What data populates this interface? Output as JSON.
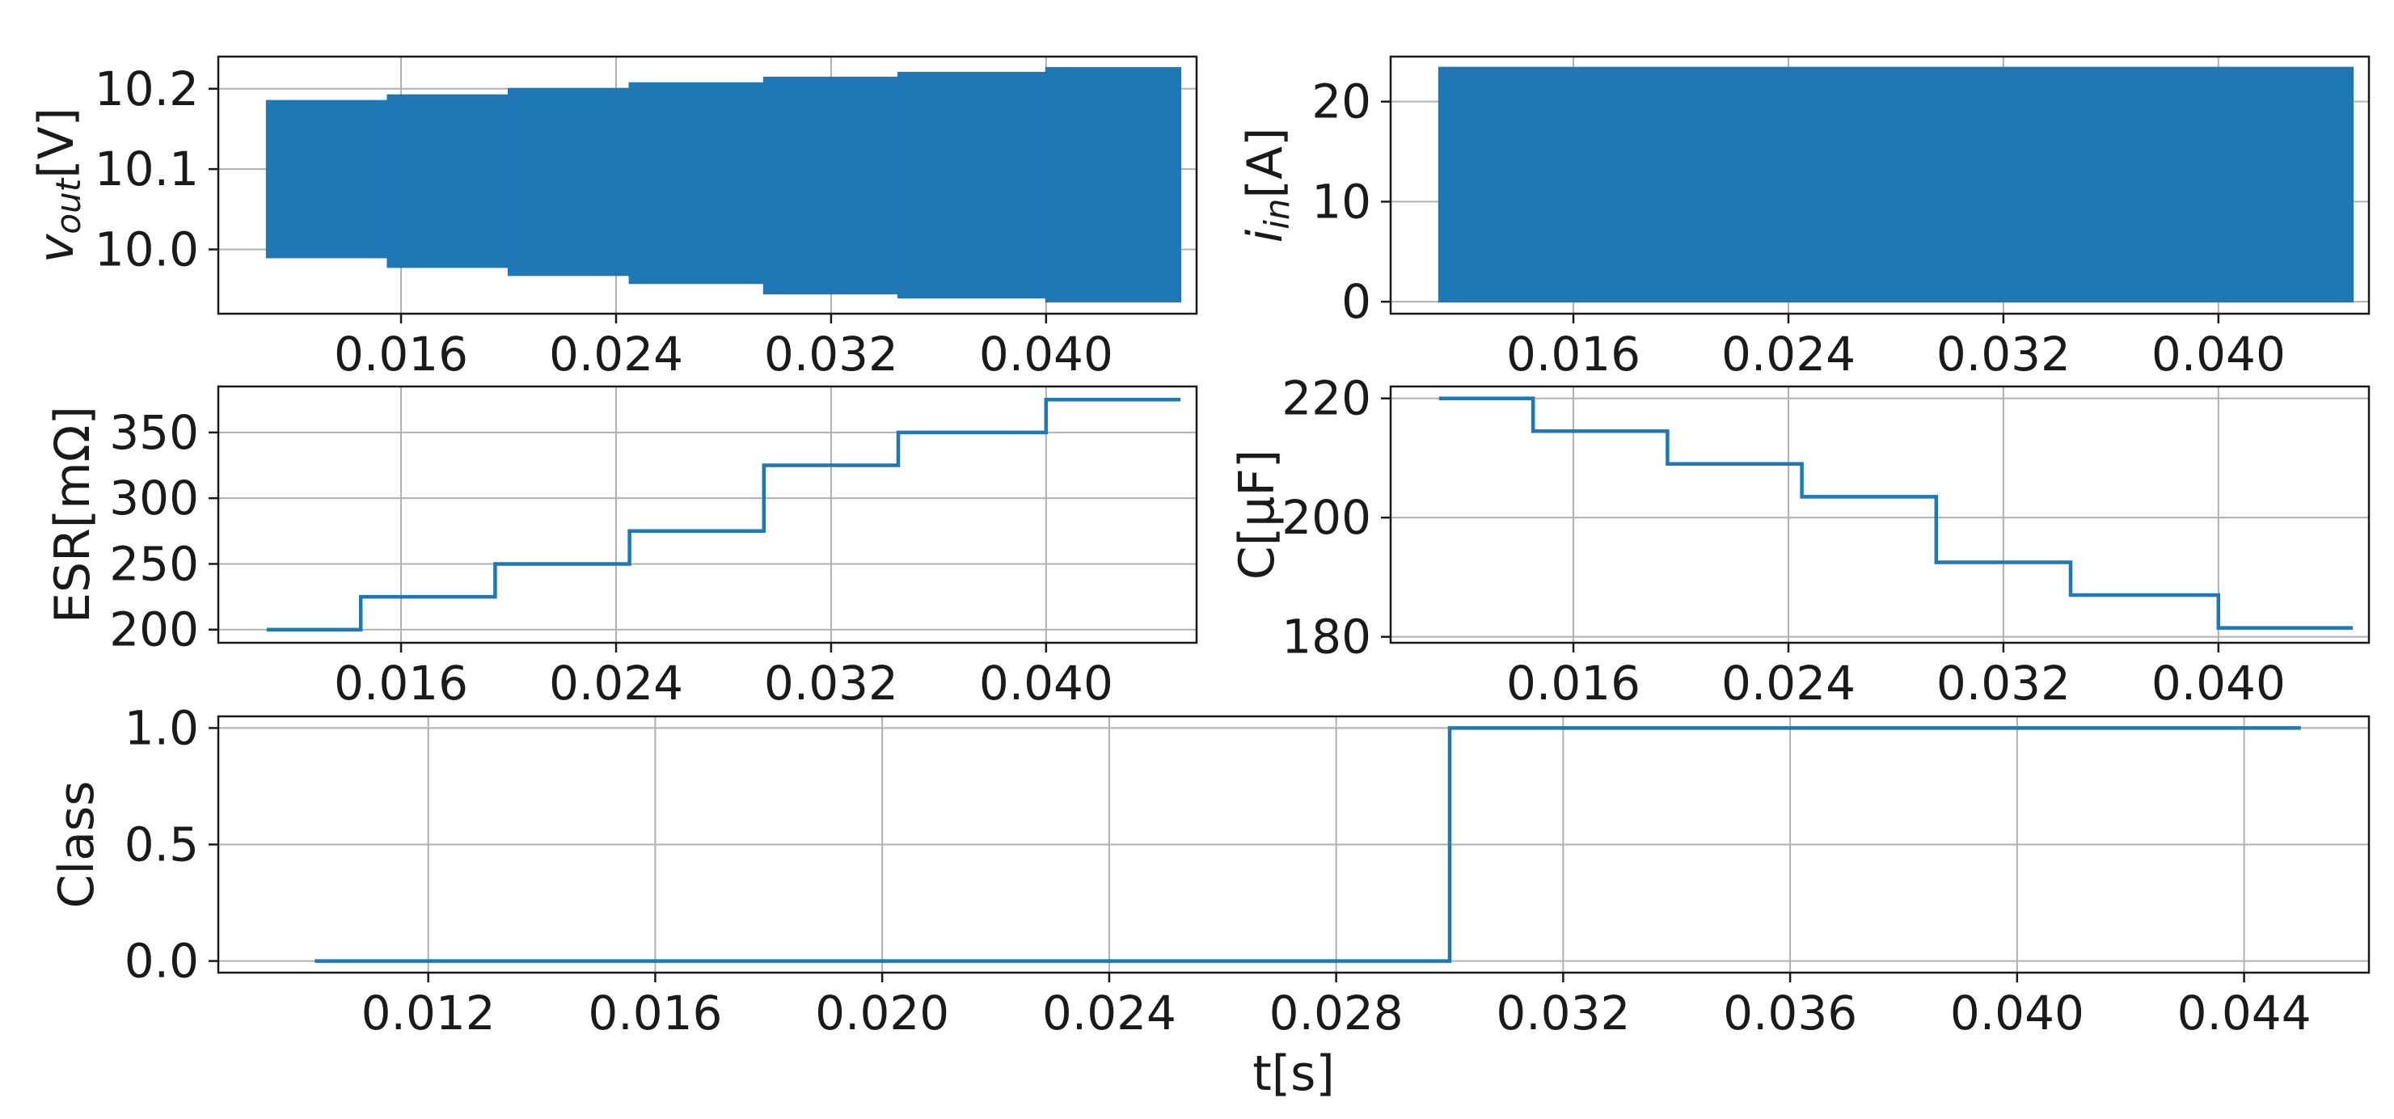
{
  "chart_data": [
    {
      "id": "vout",
      "type": "area",
      "ylabel_main": "v",
      "ylabel_sub": "out",
      "ylabel_unit": "[V]",
      "xlim": [
        0.0092,
        0.0456
      ],
      "ylim": [
        9.92,
        10.24
      ],
      "xticks": [
        0.016,
        0.024,
        0.032,
        0.04
      ],
      "xtick_labels": [
        "0.016",
        "0.024",
        "0.032",
        "0.040"
      ],
      "yticks": [
        10.0,
        10.1,
        10.2
      ],
      "ytick_labels": [
        "10.0",
        "10.1",
        "10.2"
      ],
      "grid": true,
      "color": "#1f77b4",
      "segments": [
        {
          "x0": 0.011,
          "x1": 0.0155,
          "ymin": 9.99,
          "ymax": 10.185
        },
        {
          "x0": 0.0155,
          "x1": 0.02,
          "ymin": 9.978,
          "ymax": 10.192
        },
        {
          "x0": 0.02,
          "x1": 0.0245,
          "ymin": 9.968,
          "ymax": 10.2
        },
        {
          "x0": 0.0245,
          "x1": 0.0295,
          "ymin": 9.958,
          "ymax": 10.207
        },
        {
          "x0": 0.0295,
          "x1": 0.0345,
          "ymin": 9.945,
          "ymax": 10.214
        },
        {
          "x0": 0.0345,
          "x1": 0.04,
          "ymin": 9.94,
          "ymax": 10.22
        },
        {
          "x0": 0.04,
          "x1": 0.045,
          "ymin": 9.935,
          "ymax": 10.226
        }
      ]
    },
    {
      "id": "iin",
      "type": "area",
      "ylabel_main": "i",
      "ylabel_sub": "in",
      "ylabel_unit": "[A]",
      "xlim": [
        0.0092,
        0.0456
      ],
      "ylim": [
        -1.2,
        24.5
      ],
      "xticks": [
        0.016,
        0.024,
        0.032,
        0.04
      ],
      "xtick_labels": [
        "0.016",
        "0.024",
        "0.032",
        "0.040"
      ],
      "yticks": [
        0,
        10,
        20
      ],
      "ytick_labels": [
        "0",
        "10",
        "20"
      ],
      "grid": true,
      "color": "#1f77b4",
      "segments": [
        {
          "x0": 0.011,
          "x1": 0.045,
          "ymin": 0.0,
          "ymax": 23.4
        }
      ]
    },
    {
      "id": "esr",
      "type": "line",
      "ylabel_main": "ESR[mΩ]",
      "xlim": [
        0.0092,
        0.0456
      ],
      "ylim": [
        190,
        385
      ],
      "xticks": [
        0.016,
        0.024,
        0.032,
        0.04
      ],
      "xtick_labels": [
        "0.016",
        "0.024",
        "0.032",
        "0.040"
      ],
      "yticks": [
        200,
        250,
        300,
        350
      ],
      "ytick_labels": [
        "200",
        "250",
        "300",
        "350"
      ],
      "grid": true,
      "color": "#1f77b4",
      "x": [
        0.011,
        0.0145,
        0.0145,
        0.0195,
        0.0195,
        0.0245,
        0.0245,
        0.0295,
        0.0295,
        0.0345,
        0.0345,
        0.04,
        0.04,
        0.045
      ],
      "y": [
        200,
        200,
        225,
        225,
        250,
        250,
        275,
        275,
        325,
        325,
        350,
        350,
        375,
        375
      ]
    },
    {
      "id": "cap",
      "type": "line",
      "ylabel_main": "C[μF]",
      "xlim": [
        0.0092,
        0.0456
      ],
      "ylim": [
        179,
        222
      ],
      "xticks": [
        0.016,
        0.024,
        0.032,
        0.04
      ],
      "xtick_labels": [
        "0.016",
        "0.024",
        "0.032",
        "0.040"
      ],
      "yticks": [
        180,
        200,
        220
      ],
      "ytick_labels": [
        "180",
        "200",
        "220"
      ],
      "grid": true,
      "color": "#1f77b4",
      "x": [
        0.011,
        0.0145,
        0.0145,
        0.0195,
        0.0195,
        0.0245,
        0.0245,
        0.0295,
        0.0295,
        0.0345,
        0.0345,
        0.04,
        0.04,
        0.045
      ],
      "y": [
        220,
        220,
        214.5,
        214.5,
        209,
        209,
        203.5,
        203.5,
        192.5,
        192.5,
        187,
        187,
        181.5,
        181.5
      ]
    },
    {
      "id": "class",
      "type": "line",
      "ylabel_main": "Class",
      "xlabel": "t[s]",
      "xlim": [
        0.0083,
        0.0462
      ],
      "ylim": [
        -0.05,
        1.05
      ],
      "xticks": [
        0.012,
        0.016,
        0.02,
        0.024,
        0.028,
        0.032,
        0.036,
        0.04,
        0.044
      ],
      "xtick_labels": [
        "0.012",
        "0.016",
        "0.020",
        "0.024",
        "0.028",
        "0.032",
        "0.036",
        "0.040",
        "0.044"
      ],
      "yticks": [
        0.0,
        0.5,
        1.0
      ],
      "ytick_labels": [
        "0.0",
        "0.5",
        "1.0"
      ],
      "grid": true,
      "color": "#1f77b4",
      "x": [
        0.01,
        0.03,
        0.03,
        0.045
      ],
      "y": [
        0,
        0,
        1,
        1
      ]
    }
  ]
}
